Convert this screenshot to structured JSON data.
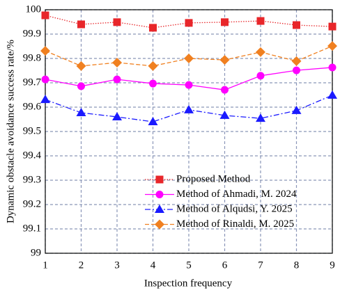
{
  "chart_data": {
    "type": "line",
    "x_label": "Inspection frequency",
    "y_label": "Dynamic obstacle avoidance success rate/%",
    "x": [
      1,
      2,
      3,
      4,
      5,
      6,
      7,
      8,
      9
    ],
    "xlim": [
      1,
      9
    ],
    "xticks": [
      1,
      2,
      3,
      4,
      5,
      6,
      7,
      8,
      9
    ],
    "ylim": [
      99,
      100
    ],
    "yticks": [
      99,
      99.1,
      99.2,
      99.3,
      99.4,
      99.5,
      99.6,
      99.7,
      99.8,
      99.9,
      100
    ],
    "grid": true,
    "legend": "lower right",
    "series": [
      {
        "name": "Proposed Method",
        "color": "#e8262a",
        "linestyle": "dotted",
        "marker": "square",
        "values": [
          99.977,
          99.94,
          99.949,
          99.926,
          99.946,
          99.949,
          99.954,
          99.937,
          99.931
        ]
      },
      {
        "name": "Method of Ahmadi, M. 2024",
        "color": "#ff00ff",
        "linestyle": "solid",
        "marker": "circle",
        "values": [
          99.714,
          99.686,
          99.714,
          99.697,
          99.691,
          99.671,
          99.729,
          99.751,
          99.763
        ]
      },
      {
        "name": "Method of Alqudsi, Y. 2025",
        "color": "#1a1aff",
        "linestyle": "dashdot",
        "marker": "triangle",
        "values": [
          99.631,
          99.577,
          99.56,
          99.54,
          99.589,
          99.566,
          99.554,
          99.586,
          99.649
        ]
      },
      {
        "name": "Method of Rinaldi, M. 2025",
        "color": "#f08020",
        "linestyle": "dashed",
        "marker": "diamond",
        "values": [
          99.831,
          99.769,
          99.783,
          99.769,
          99.8,
          99.794,
          99.826,
          99.789,
          99.851
        ]
      }
    ]
  }
}
